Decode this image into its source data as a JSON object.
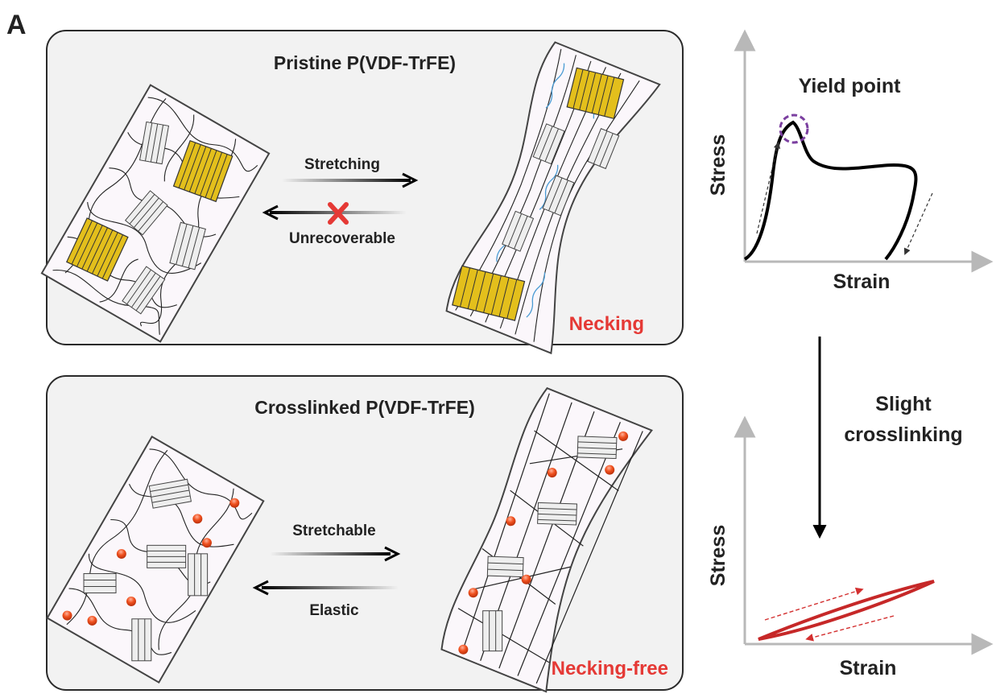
{
  "panel_label": "A",
  "top_panel": {
    "title": "Pristine P(VDF-TrFE)",
    "forward_label": "Stretching",
    "reverse_label": "Unrecoverable",
    "result_label": "Necking"
  },
  "bottom_panel": {
    "title": "Crosslinked P(VDF-TrFE)",
    "forward_label": "Stretchable",
    "reverse_label": "Elastic",
    "result_label": "Necking-free"
  },
  "top_plot": {
    "y_label": "Stress",
    "x_label": "Strain",
    "annotation": "Yield point"
  },
  "transition_label_line1": "Slight",
  "transition_label_line2": "crosslinking",
  "bottom_plot": {
    "y_label": "Stress",
    "x_label": "Strain"
  },
  "colors": {
    "crystal_yellow": "#e3bf1c",
    "crosslink_red": "#e8401a",
    "warning_red": "#e53935",
    "chain_blue": "#4a9bd4",
    "yield_circle_purple": "#7b3fa0",
    "elastic_curve_red": "#c62828",
    "axis_gray": "#b8b8b8"
  }
}
